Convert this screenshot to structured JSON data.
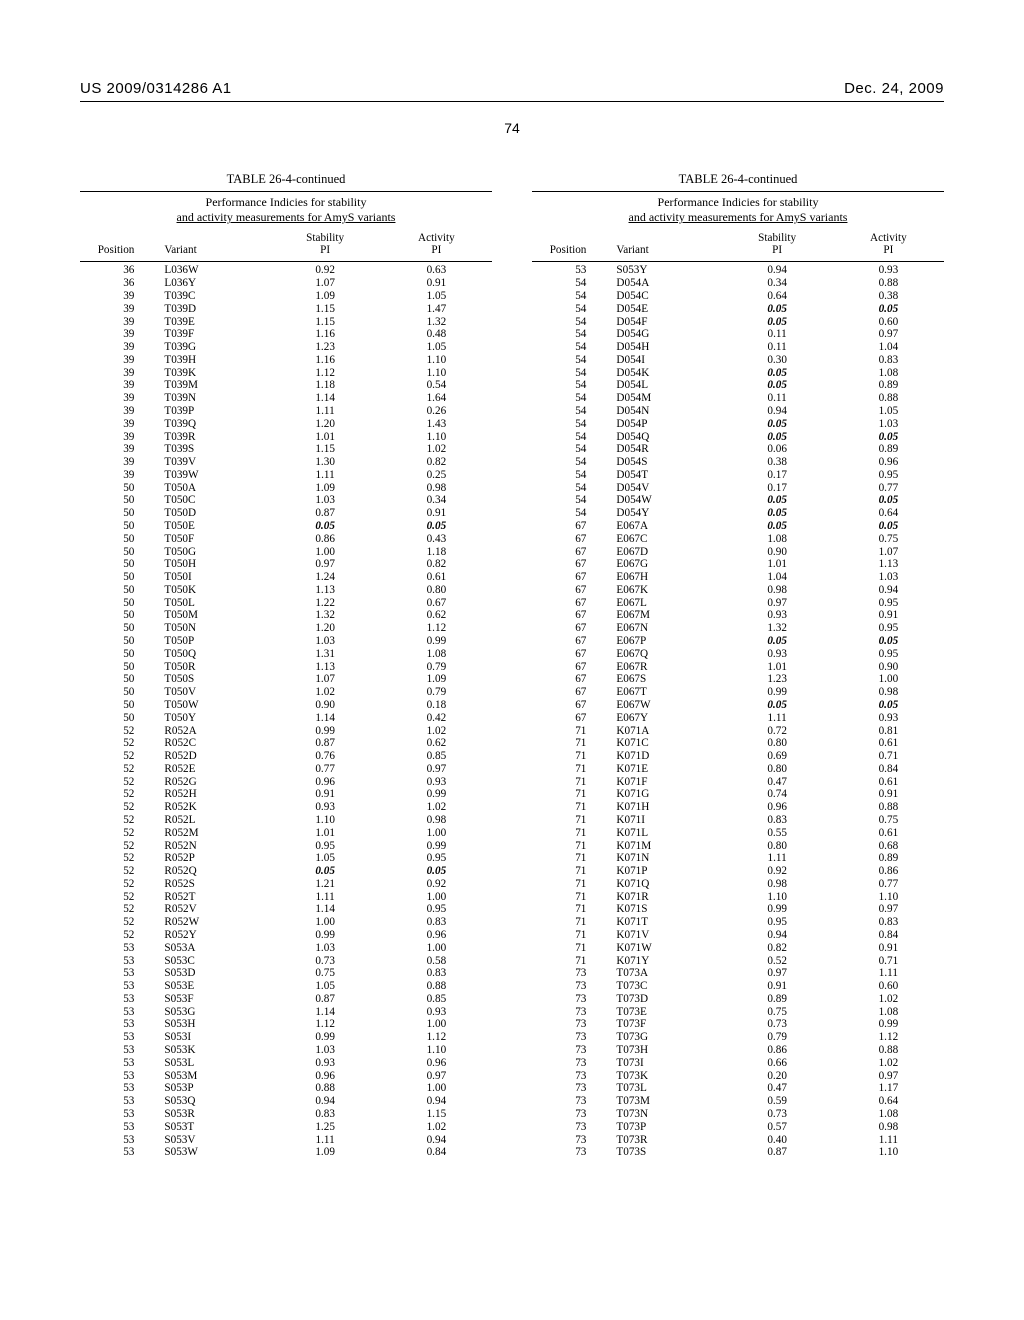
{
  "header": {
    "left": "US 2009/0314286 A1",
    "right": "Dec. 24, 2009"
  },
  "page_number": "74",
  "table_title": "TABLE 26-4-continued",
  "caption_line1": "Performance Indicies for stability",
  "caption_line2": "and activity measurements for AmyS variants",
  "columns": {
    "position": "Position",
    "variant": "Variant",
    "stability": {
      "l1": "Stability",
      "l2": "PI"
    },
    "activity": {
      "l1": "Activity",
      "l2": "PI"
    }
  },
  "emph_value": "0.05",
  "left_rows": [
    {
      "p": "36",
      "v": "L036W",
      "s": "0.92",
      "a": "0.63"
    },
    {
      "p": "36",
      "v": "L036Y",
      "s": "1.07",
      "a": "0.91"
    },
    {
      "p": "39",
      "v": "T039C",
      "s": "1.09",
      "a": "1.05"
    },
    {
      "p": "39",
      "v": "T039D",
      "s": "1.15",
      "a": "1.47"
    },
    {
      "p": "39",
      "v": "T039E",
      "s": "1.15",
      "a": "1.32"
    },
    {
      "p": "39",
      "v": "T039F",
      "s": "1.16",
      "a": "0.48"
    },
    {
      "p": "39",
      "v": "T039G",
      "s": "1.23",
      "a": "1.05"
    },
    {
      "p": "39",
      "v": "T039H",
      "s": "1.16",
      "a": "1.10"
    },
    {
      "p": "39",
      "v": "T039K",
      "s": "1.12",
      "a": "1.10"
    },
    {
      "p": "39",
      "v": "T039M",
      "s": "1.18",
      "a": "0.54"
    },
    {
      "p": "39",
      "v": "T039N",
      "s": "1.14",
      "a": "1.64"
    },
    {
      "p": "39",
      "v": "T039P",
      "s": "1.11",
      "a": "0.26"
    },
    {
      "p": "39",
      "v": "T039Q",
      "s": "1.20",
      "a": "1.43"
    },
    {
      "p": "39",
      "v": "T039R",
      "s": "1.01",
      "a": "1.10"
    },
    {
      "p": "39",
      "v": "T039S",
      "s": "1.15",
      "a": "1.02"
    },
    {
      "p": "39",
      "v": "T039V",
      "s": "1.30",
      "a": "0.82"
    },
    {
      "p": "39",
      "v": "T039W",
      "s": "1.11",
      "a": "0.25"
    },
    {
      "p": "50",
      "v": "T050A",
      "s": "1.09",
      "a": "0.98"
    },
    {
      "p": "50",
      "v": "T050C",
      "s": "1.03",
      "a": "0.34"
    },
    {
      "p": "50",
      "v": "T050D",
      "s": "0.87",
      "a": "0.91"
    },
    {
      "p": "50",
      "v": "T050E",
      "s": "0.05",
      "a": "0.05",
      "se": true,
      "ae": true
    },
    {
      "p": "50",
      "v": "T050F",
      "s": "0.86",
      "a": "0.43"
    },
    {
      "p": "50",
      "v": "T050G",
      "s": "1.00",
      "a": "1.18"
    },
    {
      "p": "50",
      "v": "T050H",
      "s": "0.97",
      "a": "0.82"
    },
    {
      "p": "50",
      "v": "T050I",
      "s": "1.24",
      "a": "0.61"
    },
    {
      "p": "50",
      "v": "T050K",
      "s": "1.13",
      "a": "0.80"
    },
    {
      "p": "50",
      "v": "T050L",
      "s": "1.22",
      "a": "0.67"
    },
    {
      "p": "50",
      "v": "T050M",
      "s": "1.32",
      "a": "0.62"
    },
    {
      "p": "50",
      "v": "T050N",
      "s": "1.20",
      "a": "1.12"
    },
    {
      "p": "50",
      "v": "T050P",
      "s": "1.03",
      "a": "0.99"
    },
    {
      "p": "50",
      "v": "T050Q",
      "s": "1.31",
      "a": "1.08"
    },
    {
      "p": "50",
      "v": "T050R",
      "s": "1.13",
      "a": "0.79"
    },
    {
      "p": "50",
      "v": "T050S",
      "s": "1.07",
      "a": "1.09"
    },
    {
      "p": "50",
      "v": "T050V",
      "s": "1.02",
      "a": "0.79"
    },
    {
      "p": "50",
      "v": "T050W",
      "s": "0.90",
      "a": "0.18"
    },
    {
      "p": "50",
      "v": "T050Y",
      "s": "1.14",
      "a": "0.42"
    },
    {
      "p": "52",
      "v": "R052A",
      "s": "0.99",
      "a": "1.02"
    },
    {
      "p": "52",
      "v": "R052C",
      "s": "0.87",
      "a": "0.62"
    },
    {
      "p": "52",
      "v": "R052D",
      "s": "0.76",
      "a": "0.85"
    },
    {
      "p": "52",
      "v": "R052E",
      "s": "0.77",
      "a": "0.97"
    },
    {
      "p": "52",
      "v": "R052G",
      "s": "0.96",
      "a": "0.93"
    },
    {
      "p": "52",
      "v": "R052H",
      "s": "0.91",
      "a": "0.99"
    },
    {
      "p": "52",
      "v": "R052K",
      "s": "0.93",
      "a": "1.02"
    },
    {
      "p": "52",
      "v": "R052L",
      "s": "1.10",
      "a": "0.98"
    },
    {
      "p": "52",
      "v": "R052M",
      "s": "1.01",
      "a": "1.00"
    },
    {
      "p": "52",
      "v": "R052N",
      "s": "0.95",
      "a": "0.99"
    },
    {
      "p": "52",
      "v": "R052P",
      "s": "1.05",
      "a": "0.95"
    },
    {
      "p": "52",
      "v": "R052Q",
      "s": "0.05",
      "a": "0.05",
      "se": true,
      "ae": true
    },
    {
      "p": "52",
      "v": "R052S",
      "s": "1.21",
      "a": "0.92"
    },
    {
      "p": "52",
      "v": "R052T",
      "s": "1.11",
      "a": "1.00"
    },
    {
      "p": "52",
      "v": "R052V",
      "s": "1.14",
      "a": "0.95"
    },
    {
      "p": "52",
      "v": "R052W",
      "s": "1.00",
      "a": "0.83"
    },
    {
      "p": "52",
      "v": "R052Y",
      "s": "0.99",
      "a": "0.96"
    },
    {
      "p": "53",
      "v": "S053A",
      "s": "1.03",
      "a": "1.00"
    },
    {
      "p": "53",
      "v": "S053C",
      "s": "0.73",
      "a": "0.58"
    },
    {
      "p": "53",
      "v": "S053D",
      "s": "0.75",
      "a": "0.83"
    },
    {
      "p": "53",
      "v": "S053E",
      "s": "1.05",
      "a": "0.88"
    },
    {
      "p": "53",
      "v": "S053F",
      "s": "0.87",
      "a": "0.85"
    },
    {
      "p": "53",
      "v": "S053G",
      "s": "1.14",
      "a": "0.93"
    },
    {
      "p": "53",
      "v": "S053H",
      "s": "1.12",
      "a": "1.00"
    },
    {
      "p": "53",
      "v": "S053I",
      "s": "0.99",
      "a": "1.12"
    },
    {
      "p": "53",
      "v": "S053K",
      "s": "1.03",
      "a": "1.10"
    },
    {
      "p": "53",
      "v": "S053L",
      "s": "0.93",
      "a": "0.96"
    },
    {
      "p": "53",
      "v": "S053M",
      "s": "0.96",
      "a": "0.97"
    },
    {
      "p": "53",
      "v": "S053P",
      "s": "0.88",
      "a": "1.00"
    },
    {
      "p": "53",
      "v": "S053Q",
      "s": "0.94",
      "a": "0.94"
    },
    {
      "p": "53",
      "v": "S053R",
      "s": "0.83",
      "a": "1.15"
    },
    {
      "p": "53",
      "v": "S053T",
      "s": "1.25",
      "a": "1.02"
    },
    {
      "p": "53",
      "v": "S053V",
      "s": "1.11",
      "a": "0.94"
    },
    {
      "p": "53",
      "v": "S053W",
      "s": "1.09",
      "a": "0.84"
    }
  ],
  "right_rows": [
    {
      "p": "53",
      "v": "S053Y",
      "s": "0.94",
      "a": "0.93"
    },
    {
      "p": "54",
      "v": "D054A",
      "s": "0.34",
      "a": "0.88"
    },
    {
      "p": "54",
      "v": "D054C",
      "s": "0.64",
      "a": "0.38"
    },
    {
      "p": "54",
      "v": "D054E",
      "s": "0.05",
      "a": "0.05",
      "se": true,
      "ae": true
    },
    {
      "p": "54",
      "v": "D054F",
      "s": "0.05",
      "a": "0.60",
      "se": true
    },
    {
      "p": "54",
      "v": "D054G",
      "s": "0.11",
      "a": "0.97"
    },
    {
      "p": "54",
      "v": "D054H",
      "s": "0.11",
      "a": "1.04"
    },
    {
      "p": "54",
      "v": "D054I",
      "s": "0.30",
      "a": "0.83"
    },
    {
      "p": "54",
      "v": "D054K",
      "s": "0.05",
      "a": "1.08",
      "se": true
    },
    {
      "p": "54",
      "v": "D054L",
      "s": "0.05",
      "a": "0.89",
      "se": true
    },
    {
      "p": "54",
      "v": "D054M",
      "s": "0.11",
      "a": "0.88"
    },
    {
      "p": "54",
      "v": "D054N",
      "s": "0.94",
      "a": "1.05"
    },
    {
      "p": "54",
      "v": "D054P",
      "s": "0.05",
      "a": "1.03",
      "se": true
    },
    {
      "p": "54",
      "v": "D054Q",
      "s": "0.05",
      "a": "0.05",
      "se": true,
      "ae": true
    },
    {
      "p": "54",
      "v": "D054R",
      "s": "0.06",
      "a": "0.89"
    },
    {
      "p": "54",
      "v": "D054S",
      "s": "0.38",
      "a": "0.96"
    },
    {
      "p": "54",
      "v": "D054T",
      "s": "0.17",
      "a": "0.95"
    },
    {
      "p": "54",
      "v": "D054V",
      "s": "0.17",
      "a": "0.77"
    },
    {
      "p": "54",
      "v": "D054W",
      "s": "0.05",
      "a": "0.05",
      "se": true,
      "ae": true
    },
    {
      "p": "54",
      "v": "D054Y",
      "s": "0.05",
      "a": "0.64",
      "se": true
    },
    {
      "p": "67",
      "v": "E067A",
      "s": "0.05",
      "a": "0.05",
      "se": true,
      "ae": true
    },
    {
      "p": "67",
      "v": "E067C",
      "s": "1.08",
      "a": "0.75"
    },
    {
      "p": "67",
      "v": "E067D",
      "s": "0.90",
      "a": "1.07"
    },
    {
      "p": "67",
      "v": "E067G",
      "s": "1.01",
      "a": "1.13"
    },
    {
      "p": "67",
      "v": "E067H",
      "s": "1.04",
      "a": "1.03"
    },
    {
      "p": "67",
      "v": "E067K",
      "s": "0.98",
      "a": "0.94"
    },
    {
      "p": "67",
      "v": "E067L",
      "s": "0.97",
      "a": "0.95"
    },
    {
      "p": "67",
      "v": "E067M",
      "s": "0.93",
      "a": "0.91"
    },
    {
      "p": "67",
      "v": "E067N",
      "s": "1.32",
      "a": "0.95"
    },
    {
      "p": "67",
      "v": "E067P",
      "s": "0.05",
      "a": "0.05",
      "se": true,
      "ae": true
    },
    {
      "p": "67",
      "v": "E067Q",
      "s": "0.93",
      "a": "0.95"
    },
    {
      "p": "67",
      "v": "E067R",
      "s": "1.01",
      "a": "0.90"
    },
    {
      "p": "67",
      "v": "E067S",
      "s": "1.23",
      "a": "1.00"
    },
    {
      "p": "67",
      "v": "E067T",
      "s": "0.99",
      "a": "0.98"
    },
    {
      "p": "67",
      "v": "E067W",
      "s": "0.05",
      "a": "0.05",
      "se": true,
      "ae": true
    },
    {
      "p": "67",
      "v": "E067Y",
      "s": "1.11",
      "a": "0.93"
    },
    {
      "p": "71",
      "v": "K071A",
      "s": "0.72",
      "a": "0.81"
    },
    {
      "p": "71",
      "v": "K071C",
      "s": "0.80",
      "a": "0.61"
    },
    {
      "p": "71",
      "v": "K071D",
      "s": "0.69",
      "a": "0.71"
    },
    {
      "p": "71",
      "v": "K071E",
      "s": "0.80",
      "a": "0.84"
    },
    {
      "p": "71",
      "v": "K071F",
      "s": "0.47",
      "a": "0.61"
    },
    {
      "p": "71",
      "v": "K071G",
      "s": "0.74",
      "a": "0.91"
    },
    {
      "p": "71",
      "v": "K071H",
      "s": "0.96",
      "a": "0.88"
    },
    {
      "p": "71",
      "v": "K071I",
      "s": "0.83",
      "a": "0.75"
    },
    {
      "p": "71",
      "v": "K071L",
      "s": "0.55",
      "a": "0.61"
    },
    {
      "p": "71",
      "v": "K071M",
      "s": "0.80",
      "a": "0.68"
    },
    {
      "p": "71",
      "v": "K071N",
      "s": "1.11",
      "a": "0.89"
    },
    {
      "p": "71",
      "v": "K071P",
      "s": "0.92",
      "a": "0.86"
    },
    {
      "p": "71",
      "v": "K071Q",
      "s": "0.98",
      "a": "0.77"
    },
    {
      "p": "71",
      "v": "K071R",
      "s": "1.10",
      "a": "1.10"
    },
    {
      "p": "71",
      "v": "K071S",
      "s": "0.99",
      "a": "0.97"
    },
    {
      "p": "71",
      "v": "K071T",
      "s": "0.95",
      "a": "0.83"
    },
    {
      "p": "71",
      "v": "K071V",
      "s": "0.94",
      "a": "0.84"
    },
    {
      "p": "71",
      "v": "K071W",
      "s": "0.82",
      "a": "0.91"
    },
    {
      "p": "71",
      "v": "K071Y",
      "s": "0.52",
      "a": "0.71"
    },
    {
      "p": "73",
      "v": "T073A",
      "s": "0.97",
      "a": "1.11"
    },
    {
      "p": "73",
      "v": "T073C",
      "s": "0.91",
      "a": "0.60"
    },
    {
      "p": "73",
      "v": "T073D",
      "s": "0.89",
      "a": "1.02"
    },
    {
      "p": "73",
      "v": "T073E",
      "s": "0.75",
      "a": "1.08"
    },
    {
      "p": "73",
      "v": "T073F",
      "s": "0.73",
      "a": "0.99"
    },
    {
      "p": "73",
      "v": "T073G",
      "s": "0.79",
      "a": "1.12"
    },
    {
      "p": "73",
      "v": "T073H",
      "s": "0.86",
      "a": "0.88"
    },
    {
      "p": "73",
      "v": "T073I",
      "s": "0.66",
      "a": "1.02"
    },
    {
      "p": "73",
      "v": "T073K",
      "s": "0.20",
      "a": "0.97"
    },
    {
      "p": "73",
      "v": "T073L",
      "s": "0.47",
      "a": "1.17"
    },
    {
      "p": "73",
      "v": "T073M",
      "s": "0.59",
      "a": "0.64"
    },
    {
      "p": "73",
      "v": "T073N",
      "s": "0.73",
      "a": "1.08"
    },
    {
      "p": "73",
      "v": "T073P",
      "s": "0.57",
      "a": "0.98"
    },
    {
      "p": "73",
      "v": "T073R",
      "s": "0.40",
      "a": "1.11"
    },
    {
      "p": "73",
      "v": "T073S",
      "s": "0.87",
      "a": "1.10"
    }
  ]
}
